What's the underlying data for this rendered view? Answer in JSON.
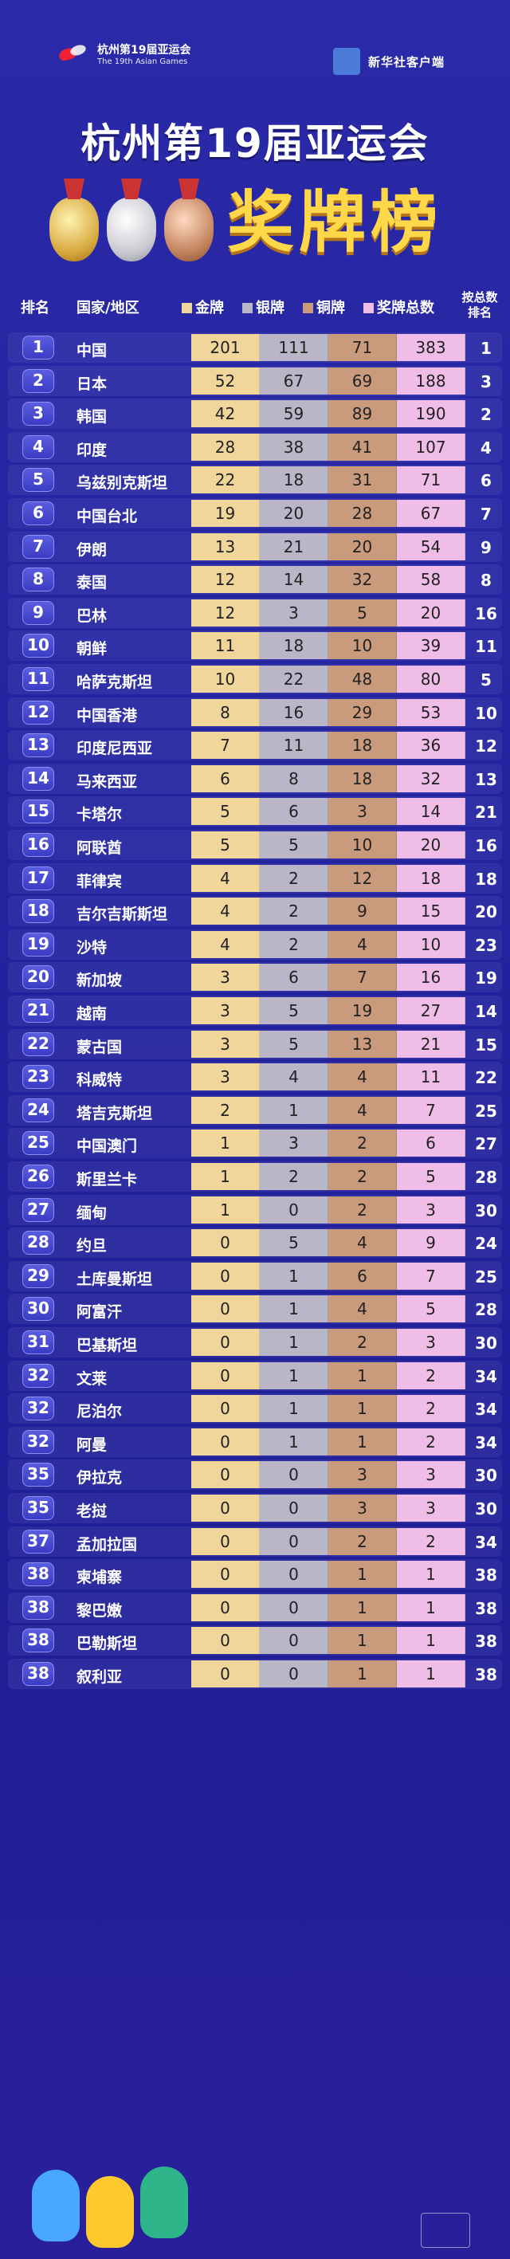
{
  "header": {
    "logo_cn": "杭州第19届亚运会",
    "logo_en": "The 19th Asian Games",
    "brand": "新华社客户端",
    "title_line1": "杭州第19届亚运会",
    "title_line2": "奖牌榜"
  },
  "table": {
    "columns": {
      "rank": "排名",
      "country": "国家/地区",
      "gold": "金牌",
      "silver": "银牌",
      "bronze": "铜牌",
      "total": "奖牌总数",
      "rank_by_total_1": "按总数",
      "rank_by_total_2": "排名"
    },
    "colors": {
      "gold": "#f0d69a",
      "silver": "#b9b6c8",
      "bronze": "#c99a7b",
      "total": "#f0bde9"
    },
    "rows": [
      {
        "rank": "1",
        "name": "中国",
        "gold": "201",
        "silver": "111",
        "bronze": "71",
        "total": "383",
        "prev": "1"
      },
      {
        "rank": "2",
        "name": "日本",
        "gold": "52",
        "silver": "67",
        "bronze": "69",
        "total": "188",
        "prev": "3"
      },
      {
        "rank": "3",
        "name": "韩国",
        "gold": "42",
        "silver": "59",
        "bronze": "89",
        "total": "190",
        "prev": "2"
      },
      {
        "rank": "4",
        "name": "印度",
        "gold": "28",
        "silver": "38",
        "bronze": "41",
        "total": "107",
        "prev": "4"
      },
      {
        "rank": "5",
        "name": "乌兹别克斯坦",
        "gold": "22",
        "silver": "18",
        "bronze": "31",
        "total": "71",
        "prev": "6"
      },
      {
        "rank": "6",
        "name": "中国台北",
        "gold": "19",
        "silver": "20",
        "bronze": "28",
        "total": "67",
        "prev": "7"
      },
      {
        "rank": "7",
        "name": "伊朗",
        "gold": "13",
        "silver": "21",
        "bronze": "20",
        "total": "54",
        "prev": "9"
      },
      {
        "rank": "8",
        "name": "泰国",
        "gold": "12",
        "silver": "14",
        "bronze": "32",
        "total": "58",
        "prev": "8"
      },
      {
        "rank": "9",
        "name": "巴林",
        "gold": "12",
        "silver": "3",
        "bronze": "5",
        "total": "20",
        "prev": "16"
      },
      {
        "rank": "10",
        "name": "朝鲜",
        "gold": "11",
        "silver": "18",
        "bronze": "10",
        "total": "39",
        "prev": "11"
      },
      {
        "rank": "11",
        "name": "哈萨克斯坦",
        "gold": "10",
        "silver": "22",
        "bronze": "48",
        "total": "80",
        "prev": "5"
      },
      {
        "rank": "12",
        "name": "中国香港",
        "gold": "8",
        "silver": "16",
        "bronze": "29",
        "total": "53",
        "prev": "10"
      },
      {
        "rank": "13",
        "name": "印度尼西亚",
        "gold": "7",
        "silver": "11",
        "bronze": "18",
        "total": "36",
        "prev": "12"
      },
      {
        "rank": "14",
        "name": "马来西亚",
        "gold": "6",
        "silver": "8",
        "bronze": "18",
        "total": "32",
        "prev": "13"
      },
      {
        "rank": "15",
        "name": "卡塔尔",
        "gold": "5",
        "silver": "6",
        "bronze": "3",
        "total": "14",
        "prev": "21"
      },
      {
        "rank": "16",
        "name": "阿联酋",
        "gold": "5",
        "silver": "5",
        "bronze": "10",
        "total": "20",
        "prev": "16"
      },
      {
        "rank": "17",
        "name": "菲律宾",
        "gold": "4",
        "silver": "2",
        "bronze": "12",
        "total": "18",
        "prev": "18"
      },
      {
        "rank": "18",
        "name": "吉尔吉斯斯坦",
        "gold": "4",
        "silver": "2",
        "bronze": "9",
        "total": "15",
        "prev": "20"
      },
      {
        "rank": "19",
        "name": "沙特",
        "gold": "4",
        "silver": "2",
        "bronze": "4",
        "total": "10",
        "prev": "23"
      },
      {
        "rank": "20",
        "name": "新加坡",
        "gold": "3",
        "silver": "6",
        "bronze": "7",
        "total": "16",
        "prev": "19"
      },
      {
        "rank": "21",
        "name": "越南",
        "gold": "3",
        "silver": "5",
        "bronze": "19",
        "total": "27",
        "prev": "14"
      },
      {
        "rank": "22",
        "name": "蒙古国",
        "gold": "3",
        "silver": "5",
        "bronze": "13",
        "total": "21",
        "prev": "15"
      },
      {
        "rank": "23",
        "name": "科威特",
        "gold": "3",
        "silver": "4",
        "bronze": "4",
        "total": "11",
        "prev": "22"
      },
      {
        "rank": "24",
        "name": "塔吉克斯坦",
        "gold": "2",
        "silver": "1",
        "bronze": "4",
        "total": "7",
        "prev": "25"
      },
      {
        "rank": "25",
        "name": "中国澳门",
        "gold": "1",
        "silver": "3",
        "bronze": "2",
        "total": "6",
        "prev": "27"
      },
      {
        "rank": "26",
        "name": "斯里兰卡",
        "gold": "1",
        "silver": "2",
        "bronze": "2",
        "total": "5",
        "prev": "28"
      },
      {
        "rank": "27",
        "name": "缅甸",
        "gold": "1",
        "silver": "0",
        "bronze": "2",
        "total": "3",
        "prev": "30"
      },
      {
        "rank": "28",
        "name": "约旦",
        "gold": "0",
        "silver": "5",
        "bronze": "4",
        "total": "9",
        "prev": "24"
      },
      {
        "rank": "29",
        "name": "土库曼斯坦",
        "gold": "0",
        "silver": "1",
        "bronze": "6",
        "total": "7",
        "prev": "25"
      },
      {
        "rank": "30",
        "name": "阿富汗",
        "gold": "0",
        "silver": "1",
        "bronze": "4",
        "total": "5",
        "prev": "28"
      },
      {
        "rank": "31",
        "name": "巴基斯坦",
        "gold": "0",
        "silver": "1",
        "bronze": "2",
        "total": "3",
        "prev": "30"
      },
      {
        "rank": "32",
        "name": "文莱",
        "gold": "0",
        "silver": "1",
        "bronze": "1",
        "total": "2",
        "prev": "34"
      },
      {
        "rank": "32",
        "name": "尼泊尔",
        "gold": "0",
        "silver": "1",
        "bronze": "1",
        "total": "2",
        "prev": "34"
      },
      {
        "rank": "32",
        "name": "阿曼",
        "gold": "0",
        "silver": "1",
        "bronze": "1",
        "total": "2",
        "prev": "34"
      },
      {
        "rank": "35",
        "name": "伊拉克",
        "gold": "0",
        "silver": "0",
        "bronze": "3",
        "total": "3",
        "prev": "30"
      },
      {
        "rank": "35",
        "name": "老挝",
        "gold": "0",
        "silver": "0",
        "bronze": "3",
        "total": "3",
        "prev": "30"
      },
      {
        "rank": "37",
        "name": "孟加拉国",
        "gold": "0",
        "silver": "0",
        "bronze": "2",
        "total": "2",
        "prev": "34"
      },
      {
        "rank": "38",
        "name": "柬埔寨",
        "gold": "0",
        "silver": "0",
        "bronze": "1",
        "total": "1",
        "prev": "38"
      },
      {
        "rank": "38",
        "name": "黎巴嫩",
        "gold": "0",
        "silver": "0",
        "bronze": "1",
        "total": "1",
        "prev": "38"
      },
      {
        "rank": "38",
        "name": "巴勒斯坦",
        "gold": "0",
        "silver": "0",
        "bronze": "1",
        "total": "1",
        "prev": "38"
      },
      {
        "rank": "38",
        "name": "叙利亚",
        "gold": "0",
        "silver": "0",
        "bronze": "1",
        "total": "1",
        "prev": "38"
      }
    ]
  }
}
